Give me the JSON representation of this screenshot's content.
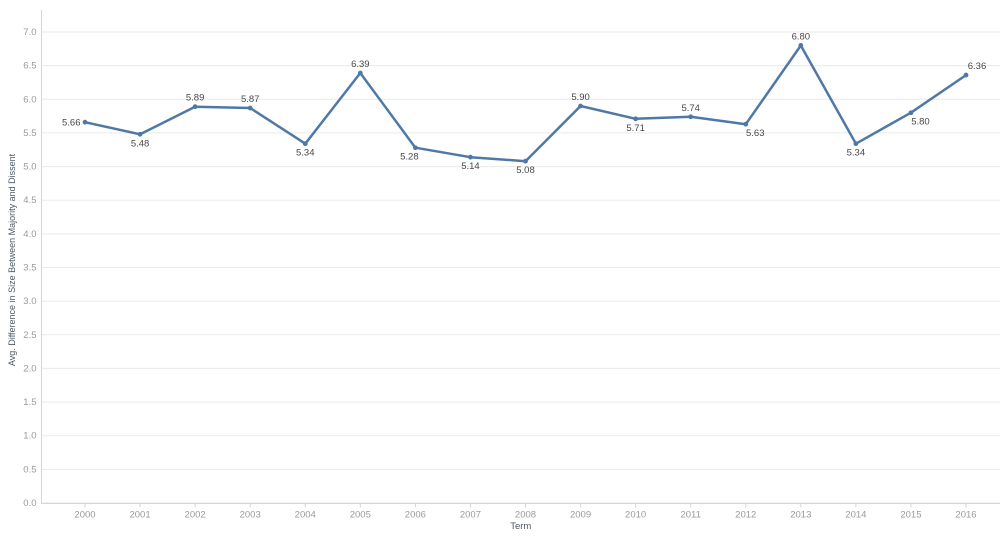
{
  "chart_data": {
    "type": "line",
    "title": "",
    "xlabel": "Term",
    "ylabel": "Avg. Difference in Size Between Majority and Dissent",
    "x": [
      2000,
      2001,
      2002,
      2003,
      2004,
      2005,
      2006,
      2007,
      2008,
      2009,
      2010,
      2011,
      2012,
      2013,
      2014,
      2015,
      2016
    ],
    "values": [
      5.66,
      5.48,
      5.89,
      5.87,
      5.34,
      6.39,
      5.28,
      5.14,
      5.08,
      5.9,
      5.71,
      5.74,
      5.63,
      6.8,
      5.34,
      5.8,
      6.36
    ],
    "data_labels": [
      "5.66",
      "5.48",
      "5.89",
      "5.87",
      "5.34",
      "6.39",
      "5.28",
      "5.14",
      "5.08",
      "5.90",
      "5.71",
      "5.74",
      "5.63",
      "6.80",
      "5.34",
      "5.80",
      "6.36"
    ],
    "label_placement": [
      "left",
      "below",
      "above",
      "above",
      "below",
      "above",
      "below-left",
      "below",
      "below",
      "above",
      "below",
      "above",
      "below-right",
      "above",
      "below",
      "below-right",
      "above-right"
    ],
    "ylim": [
      0,
      7
    ],
    "ytick_step": 0.5,
    "yticks": [
      "0.0",
      "0.5",
      "1.0",
      "1.5",
      "2.0",
      "2.5",
      "3.0",
      "3.5",
      "4.0",
      "4.5",
      "5.0",
      "5.5",
      "6.0",
      "6.5",
      "7.0"
    ],
    "grid": "horizontal",
    "legend": "none",
    "marker": "circle"
  },
  "style": {
    "line_color": "#4e79a7",
    "grid_color": "#eaeaea",
    "axis_line_color": "#d5d5d5",
    "tick_label_color": "#9a9a9a",
    "data_label_color": "#484848",
    "axis_title_color": "#4e5a65",
    "background": "#ffffff"
  }
}
